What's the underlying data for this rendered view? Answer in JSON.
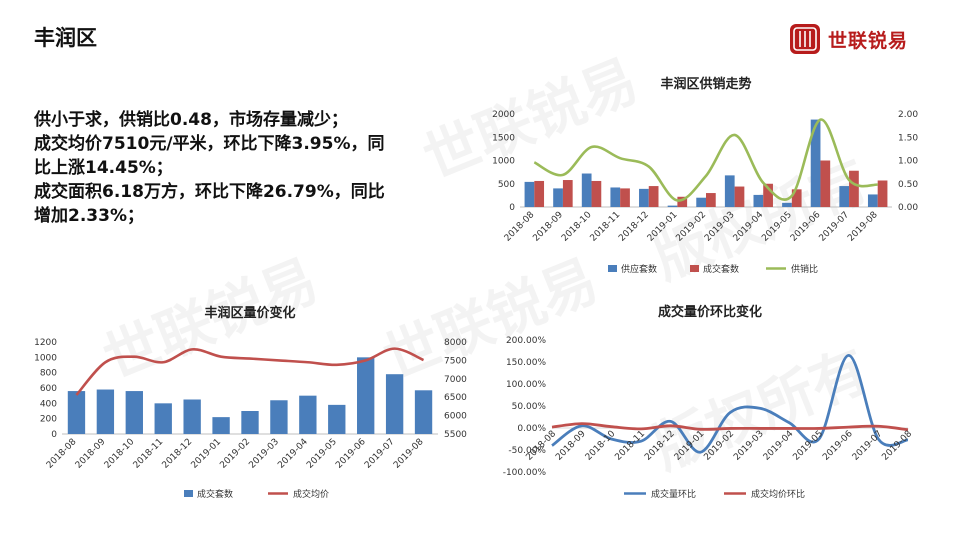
{
  "page": {
    "title": "丰润区",
    "logo_text": "世联锐易",
    "brand_color": "#b71c1c"
  },
  "watermark": [
    "世联锐易",
    "版权所有"
  ],
  "summary": [
    "供小于求，供销比0.48，市场存量减少；",
    "成交均价7510元/平米，环比下降3.95%，同",
    "比上涨14.45%；",
    "成交面积6.18万方，环比下降26.79%，同比",
    "增加2.33%；"
  ],
  "chart_data": [
    {
      "id": "supply-sales",
      "type": "bar",
      "title": "丰润区供销走势",
      "categories": [
        "2018-08",
        "2018-09",
        "2018-10",
        "2018-11",
        "2018-12",
        "2019-01",
        "2019-02",
        "2019-03",
        "2019-04",
        "2019-05",
        "2019-06",
        "2019-07",
        "2019-08"
      ],
      "series": [
        {
          "name": "供应套数",
          "type": "bar",
          "axis": "left",
          "color": "#4a7ebb",
          "values": [
            540,
            400,
            720,
            420,
            390,
            30,
            200,
            680,
            260,
            90,
            1880,
            450,
            270
          ]
        },
        {
          "name": "成交套数",
          "type": "bar",
          "axis": "left",
          "color": "#c0504d",
          "values": [
            560,
            580,
            560,
            400,
            450,
            220,
            300,
            440,
            500,
            380,
            1000,
            780,
            570
          ]
        },
        {
          "name": "供销比",
          "type": "line",
          "axis": "right",
          "color": "#9bbb59",
          "values": [
            0.96,
            0.69,
            1.29,
            1.05,
            0.87,
            0.14,
            0.67,
            1.55,
            0.52,
            0.24,
            1.88,
            0.58,
            0.48
          ]
        }
      ],
      "ylim_left": [
        0,
        2000
      ],
      "yticks_left": [
        "0",
        "500",
        "1000",
        "1500",
        "2000"
      ],
      "ylim_right": [
        0,
        2
      ],
      "yticks_right": [
        "0.00",
        "0.50",
        "1.00",
        "1.50",
        "2.00"
      ]
    },
    {
      "id": "volume-price",
      "type": "bar",
      "title": "丰润区量价变化",
      "categories": [
        "2018-08",
        "2018-09",
        "2018-10",
        "2018-11",
        "2018-12",
        "2019-01",
        "2019-02",
        "2019-03",
        "2019-04",
        "2019-05",
        "2019-06",
        "2019-07",
        "2019-08"
      ],
      "series": [
        {
          "name": "成交套数",
          "type": "bar",
          "axis": "left",
          "color": "#4a7ebb",
          "values": [
            560,
            580,
            560,
            400,
            450,
            220,
            300,
            440,
            500,
            380,
            1000,
            780,
            570
          ]
        },
        {
          "name": "成交均价",
          "type": "line",
          "axis": "right",
          "color": "#c0504d",
          "values": [
            6560,
            7450,
            7600,
            7450,
            7800,
            7600,
            7550,
            7500,
            7450,
            7380,
            7500,
            7820,
            7510
          ]
        }
      ],
      "ylim_left": [
        0,
        1200
      ],
      "yticks_left": [
        "0",
        "200",
        "400",
        "600",
        "800",
        "1000",
        "1200"
      ],
      "ylim_right": [
        5500,
        8000
      ],
      "yticks_right": [
        "5500",
        "6000",
        "6500",
        "7000",
        "7500",
        "8000"
      ]
    },
    {
      "id": "mom-change",
      "type": "line",
      "title": "成交量价环比变化",
      "categories": [
        "2018-08",
        "2018-09",
        "2018-10",
        "2018-11",
        "2018-12",
        "2019-01",
        "2019-02",
        "2019-03",
        "2019-04",
        "2019-05",
        "2019-06",
        "2019-07",
        "2019-08"
      ],
      "series": [
        {
          "name": "成交量环比",
          "color": "#4a7ebb",
          "values": [
            -40,
            5,
            -25,
            -30,
            15,
            -55,
            35,
            45,
            12,
            -25,
            165,
            -25,
            -27
          ]
        },
        {
          "name": "成交均价环比",
          "color": "#c0504d",
          "values": [
            2,
            10,
            3,
            -2,
            5,
            -3,
            -1,
            -1,
            -1,
            -1,
            2,
            4,
            -4
          ]
        }
      ],
      "ylim": [
        -100,
        200
      ],
      "yticks": [
        "-100.00%",
        "-50.00%",
        "0.00%",
        "50.00%",
        "100.00%",
        "150.00%",
        "200.00%"
      ]
    }
  ]
}
